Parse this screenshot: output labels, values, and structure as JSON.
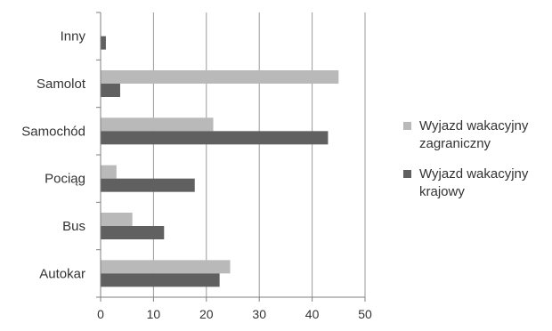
{
  "chart_data": {
    "type": "bar",
    "orientation": "horizontal",
    "title": "",
    "xlabel": "",
    "ylabel": "",
    "xlim": [
      0,
      50
    ],
    "x_ticks": [
      0,
      10,
      20,
      30,
      40,
      50
    ],
    "categories": [
      "Autokar",
      "Bus",
      "Pociąg",
      "Samochód",
      "Samolot",
      "Inny"
    ],
    "series": [
      {
        "name": "Wyjazd wakacyjny\nzagraniczny",
        "color": "#b9b9b9",
        "values": [
          24.5,
          6,
          3,
          21.3,
          45,
          0
        ]
      },
      {
        "name": "Wyjazd wakacyjny\nkrajowy",
        "color": "#606060",
        "values": [
          22.5,
          12,
          17.8,
          43,
          3.7,
          1
        ]
      }
    ],
    "grid": "vertical",
    "legend_position": "right"
  }
}
